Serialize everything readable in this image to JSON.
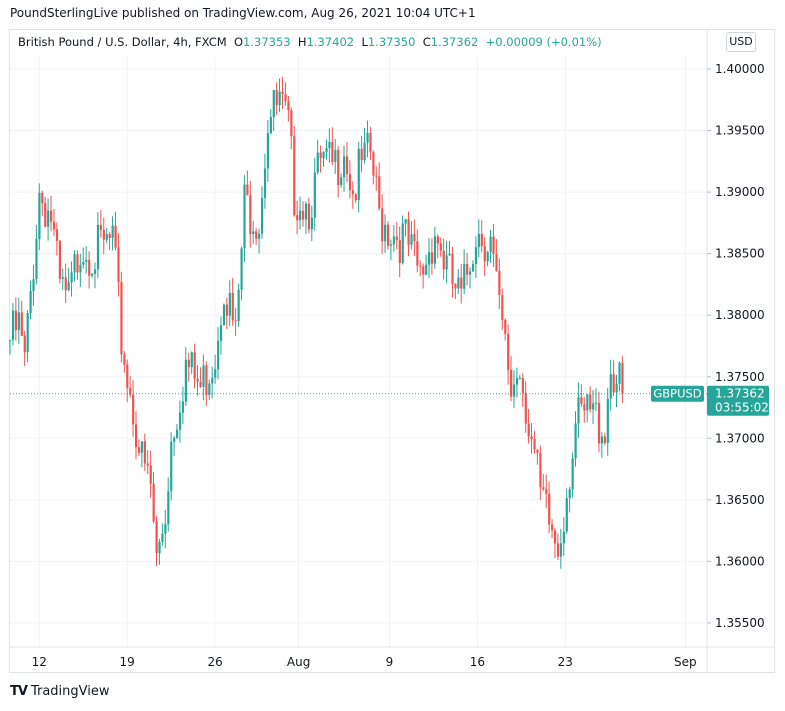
{
  "header": {
    "published": "PoundSterlingLive published on TradingView.com, Aug 26, 2021 10:04 UTC+1"
  },
  "legend": {
    "symbol": "British Pound / U.S. Dollar, 4h, FXCM",
    "o_label": "O",
    "o": "1.37353",
    "h_label": "H",
    "h": "1.37402",
    "l_label": "L",
    "l": "1.37350",
    "c_label": "C",
    "c": "1.37362",
    "change": "+0.00009 (+0.01%)"
  },
  "currency_button": "USD",
  "price_label": {
    "symbol": "GBPUSD",
    "price": "1.37362",
    "countdown": "03:55:02"
  },
  "footer": {
    "brand": "TradingView"
  },
  "colors": {
    "up": "#26a69a",
    "down": "#ef5350",
    "grid": "#f0f3fa"
  },
  "chart_data": {
    "type": "candlestick",
    "title": "British Pound / U.S. Dollar, 4h, FXCM",
    "current_price": 1.37362,
    "ylim": [
      1.352,
      1.4035
    ],
    "y_ticks": [
      "1.40000",
      "1.39500",
      "1.39000",
      "1.38500",
      "1.38000",
      "1.37500",
      "1.37000",
      "1.36500",
      "1.36000",
      "1.35500"
    ],
    "x_ticks": [
      {
        "label": "12",
        "index": 10
      },
      {
        "label": "19",
        "index": 40
      },
      {
        "label": "26",
        "index": 70
      },
      {
        "label": "Aug",
        "index": 98.5
      },
      {
        "label": "9",
        "index": 129.5
      },
      {
        "label": "16",
        "index": 159.5
      },
      {
        "label": "23",
        "index": 189.5
      },
      {
        "label": "Sep",
        "index": 230.5
      }
    ],
    "close_waypoints": [
      [
        0,
        1.378
      ],
      [
        3,
        1.379
      ],
      [
        5,
        1.376
      ],
      [
        10,
        1.39
      ],
      [
        14,
        1.388
      ],
      [
        17,
        1.382
      ],
      [
        20,
        1.381
      ],
      [
        24,
        1.386
      ],
      [
        29,
        1.385
      ],
      [
        35,
        1.386
      ],
      [
        38,
        1.378
      ],
      [
        40,
        1.375
      ],
      [
        43,
        1.371
      ],
      [
        45,
        1.368
      ],
      [
        48,
        1.366
      ],
      [
        50,
        1.36
      ],
      [
        53,
        1.364
      ],
      [
        55,
        1.37
      ],
      [
        60,
        1.376
      ],
      [
        65,
        1.374
      ],
      [
        70,
        1.377
      ],
      [
        73,
        1.383
      ],
      [
        77,
        1.378
      ],
      [
        80,
        1.389
      ],
      [
        85,
        1.388
      ],
      [
        88,
        1.396
      ],
      [
        92,
        1.397
      ],
      [
        95,
        1.395
      ],
      [
        97,
        1.39
      ],
      [
        102,
        1.389
      ],
      [
        106,
        1.392
      ],
      [
        111,
        1.392
      ],
      [
        114,
        1.394
      ],
      [
        117,
        1.39
      ],
      [
        120,
        1.392
      ],
      [
        123,
        1.393
      ],
      [
        126,
        1.388
      ],
      [
        130,
        1.387
      ],
      [
        135,
        1.386
      ],
      [
        140,
        1.383
      ],
      [
        145,
        1.387
      ],
      [
        150,
        1.383
      ],
      [
        154,
        1.381
      ],
      [
        159,
        1.387
      ],
      [
        164,
        1.386
      ],
      [
        167,
        1.38
      ],
      [
        171,
        1.374
      ],
      [
        174,
        1.376
      ],
      [
        178,
        1.37
      ],
      [
        181,
        1.365
      ],
      [
        184,
        1.363
      ],
      [
        187,
        1.361
      ],
      [
        190,
        1.366
      ],
      [
        193,
        1.371
      ],
      [
        198,
        1.372
      ],
      [
        203,
        1.371
      ],
      [
        205,
        1.376
      ],
      [
        208,
        1.374
      ],
      [
        209,
        1.37362
      ]
    ]
  }
}
